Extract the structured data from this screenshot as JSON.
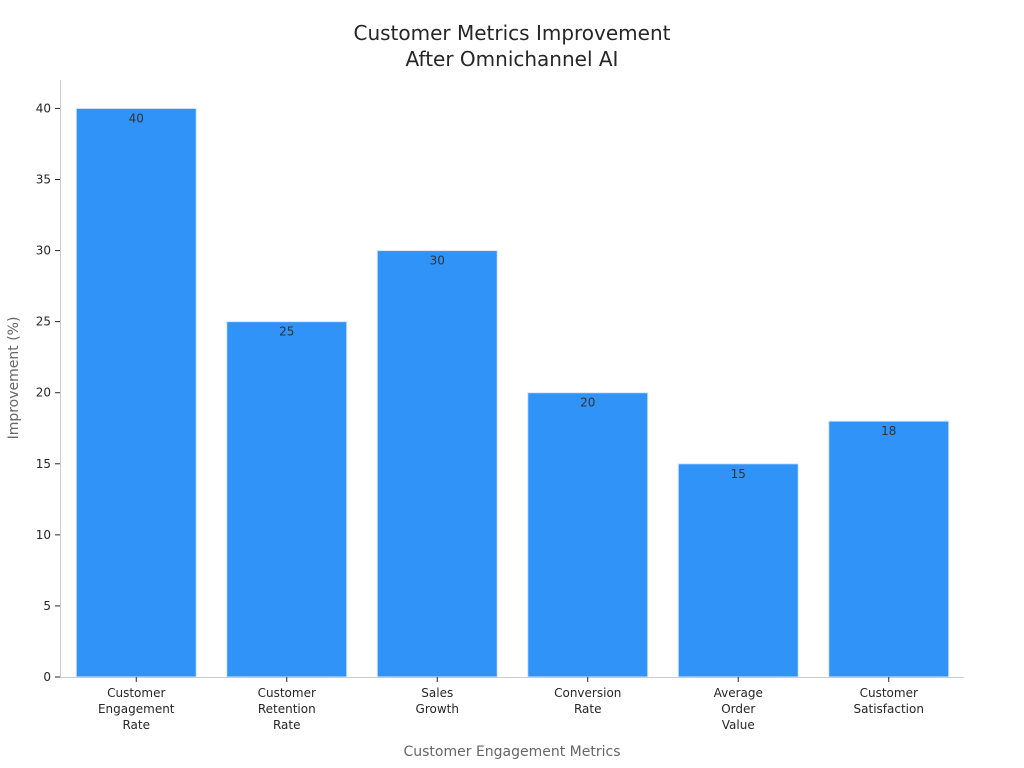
{
  "chart_data": {
    "type": "bar",
    "title": [
      "Customer Metrics Improvement",
      "After Omnichannel AI"
    ],
    "xlabel": "Customer Engagement Metrics",
    "ylabel": "Improvement (%)",
    "categories": [
      [
        "Customer",
        "Engagement",
        "Rate"
      ],
      [
        "Customer",
        "Retention",
        "Rate"
      ],
      [
        "Sales",
        "Growth"
      ],
      [
        "Conversion",
        "Rate"
      ],
      [
        "Average",
        "Order",
        "Value"
      ],
      [
        "Customer",
        "Satisfaction"
      ]
    ],
    "values": [
      40,
      25,
      30,
      20,
      15,
      18
    ],
    "ylim": [
      0,
      42
    ],
    "yticks": [
      0,
      5,
      10,
      15,
      20,
      25,
      30,
      35,
      40
    ],
    "grid": false,
    "bar_color": "#3093f8",
    "bar_edge_color": "#d7e7fb",
    "axis_color": "#cccccc"
  }
}
